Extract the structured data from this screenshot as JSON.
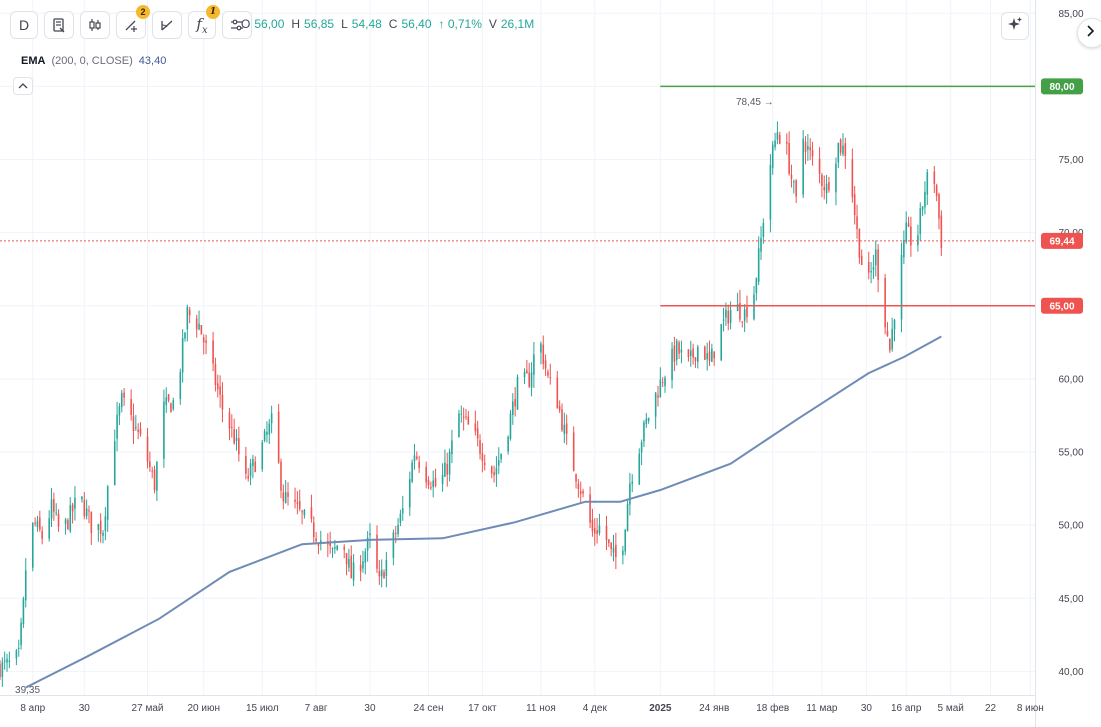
{
  "toolbar": {
    "interval_label": "D",
    "drawings_badge": "2",
    "indicators_badge": "1",
    "fx_label": "f",
    "fx_sub": "x"
  },
  "ohlc": {
    "o_key": "O",
    "o_val": "56,00",
    "h_key": "H",
    "h_val": "56,85",
    "l_key": "L",
    "l_val": "54,48",
    "c_key": "C",
    "c_val": "56,40",
    "change": "↑ 0,71%",
    "v_key": "V",
    "v_val": "26,1M"
  },
  "indicator": {
    "name": "EMA",
    "params": "(200, 0, CLOSE)",
    "value": "43,40"
  },
  "colors": {
    "up": "#26a69a",
    "down": "#ef5350",
    "ema": "#6f8bb6",
    "resistance": "#43a047",
    "support": "#ef5350",
    "current": "#ef5350"
  },
  "chart_data": {
    "type": "candlestick",
    "y_axis": {
      "min": 39,
      "max": 85.5,
      "ticks": [
        40,
        45,
        50,
        55,
        60,
        65,
        70,
        75,
        80,
        85
      ],
      "tick_labels": [
        "40,00",
        "45,00",
        "50,00",
        "55,00",
        "60,00",
        "65,00",
        "70,00",
        "75,00",
        "80,00",
        "85,00"
      ]
    },
    "x_axis": {
      "start": "2024-03-25",
      "end": "2025-06-10",
      "ticks": [
        {
          "date": "2024-04-08",
          "label": "8 апр",
          "bold": false
        },
        {
          "date": "2024-04-30",
          "label": "30",
          "bold": false
        },
        {
          "date": "2024-05-27",
          "label": "27 май",
          "bold": false
        },
        {
          "date": "2024-06-20",
          "label": "20 июн",
          "bold": false
        },
        {
          "date": "2024-07-15",
          "label": "15 июл",
          "bold": false
        },
        {
          "date": "2024-08-07",
          "label": "7 авг",
          "bold": false
        },
        {
          "date": "2024-08-30",
          "label": "30",
          "bold": false
        },
        {
          "date": "2024-09-24",
          "label": "24 сен",
          "bold": false
        },
        {
          "date": "2024-10-17",
          "label": "17 окт",
          "bold": false
        },
        {
          "date": "2024-11-11",
          "label": "11 ноя",
          "bold": false
        },
        {
          "date": "2024-12-04",
          "label": "4 дек",
          "bold": false
        },
        {
          "date": "2025-01-01",
          "label": "2025",
          "bold": true
        },
        {
          "date": "2025-01-24",
          "label": "24 янв",
          "bold": false
        },
        {
          "date": "2025-02-18",
          "label": "18 фев",
          "bold": false
        },
        {
          "date": "2025-03-11",
          "label": "11 мар",
          "bold": false
        },
        {
          "date": "2025-03-30",
          "label": "30",
          "bold": false
        },
        {
          "date": "2025-04-16",
          "label": "16 апр",
          "bold": false
        },
        {
          "date": "2025-05-05",
          "label": "5 май",
          "bold": false
        },
        {
          "date": "2025-05-22",
          "label": "22",
          "bold": false
        },
        {
          "date": "2025-06-08",
          "label": "8 июн",
          "bold": false
        }
      ]
    },
    "close_path": [
      [
        "2024-03-25",
        40.3
      ],
      [
        "2024-03-30",
        40.5
      ],
      [
        "2024-04-02",
        41.0
      ],
      [
        "2024-04-04",
        44.5
      ],
      [
        "2024-04-06",
        49.5
      ],
      [
        "2024-04-09",
        50.0
      ],
      [
        "2024-04-12",
        49.2
      ],
      [
        "2024-04-16",
        51.2
      ],
      [
        "2024-04-20",
        49.3
      ],
      [
        "2024-04-25",
        51.0
      ],
      [
        "2024-04-28",
        52.0
      ],
      [
        "2024-05-03",
        50.0
      ],
      [
        "2024-05-08",
        49.8
      ],
      [
        "2024-05-12",
        55.5
      ],
      [
        "2024-05-16",
        58.5
      ],
      [
        "2024-05-20",
        57.2
      ],
      [
        "2024-05-25",
        55.5
      ],
      [
        "2024-05-30",
        52.8
      ],
      [
        "2024-06-03",
        58.0
      ],
      [
        "2024-06-08",
        58.5
      ],
      [
        "2024-06-13",
        64.5
      ],
      [
        "2024-06-18",
        63.7
      ],
      [
        "2024-06-23",
        61.0
      ],
      [
        "2024-06-28",
        58.0
      ],
      [
        "2024-07-03",
        56.0
      ],
      [
        "2024-07-08",
        53.0
      ],
      [
        "2024-07-14",
        55.0
      ],
      [
        "2024-07-19",
        57.0
      ],
      [
        "2024-07-24",
        52.0
      ],
      [
        "2024-07-30",
        51.0
      ],
      [
        "2024-08-04",
        50.0
      ],
      [
        "2024-08-09",
        49.0
      ],
      [
        "2024-08-14",
        48.0
      ],
      [
        "2024-08-18",
        49.2
      ],
      [
        "2024-08-22",
        46.5
      ],
      [
        "2024-08-26",
        47.5
      ],
      [
        "2024-08-30",
        49.0
      ],
      [
        "2024-09-03",
        46.0
      ],
      [
        "2024-09-08",
        48.5
      ],
      [
        "2024-09-13",
        51.0
      ],
      [
        "2024-09-18",
        55.0
      ],
      [
        "2024-09-23",
        53.5
      ],
      [
        "2024-09-28",
        52.5
      ],
      [
        "2024-10-02",
        54.0
      ],
      [
        "2024-10-07",
        57.5
      ],
      [
        "2024-10-12",
        56.5
      ],
      [
        "2024-10-17",
        55.0
      ],
      [
        "2024-10-22",
        53.5
      ],
      [
        "2024-10-27",
        56.0
      ],
      [
        "2024-11-01",
        59.5
      ],
      [
        "2024-11-06",
        60.0
      ],
      [
        "2024-11-10",
        63.0
      ],
      [
        "2024-11-14",
        60.0
      ],
      [
        "2024-11-18",
        58.5
      ],
      [
        "2024-11-23",
        55.0
      ],
      [
        "2024-11-28",
        52.5
      ],
      [
        "2024-12-03",
        49.5
      ],
      [
        "2024-12-07",
        50.0
      ],
      [
        "2024-12-11",
        48.0
      ],
      [
        "2024-12-15",
        47.5
      ],
      [
        "2024-12-19",
        53.0
      ],
      [
        "2024-12-24",
        56.0
      ],
      [
        "2024-12-29",
        58.5
      ],
      [
        "2025-01-03",
        60.5
      ],
      [
        "2025-01-08",
        62.0
      ],
      [
        "2025-01-13",
        61.0
      ],
      [
        "2025-01-18",
        62.5
      ],
      [
        "2025-01-22",
        61.0
      ],
      [
        "2025-01-27",
        63.5
      ],
      [
        "2025-02-01",
        65.0
      ],
      [
        "2025-02-06",
        64.5
      ],
      [
        "2025-02-10",
        66.0
      ],
      [
        "2025-02-13",
        69.5
      ],
      [
        "2025-02-16",
        74.0
      ],
      [
        "2025-02-20",
        77.0
      ],
      [
        "2025-02-24",
        75.5
      ],
      [
        "2025-02-28",
        72.0
      ],
      [
        "2025-03-03",
        76.5
      ],
      [
        "2025-03-08",
        74.5
      ],
      [
        "2025-03-13",
        73.0
      ],
      [
        "2025-03-18",
        76.0
      ],
      [
        "2025-03-22",
        75.5
      ],
      [
        "2025-03-26",
        70.0
      ],
      [
        "2025-03-30",
        66.0
      ],
      [
        "2025-04-03",
        68.5
      ],
      [
        "2025-04-06",
        65.0
      ],
      [
        "2025-04-09",
        62.0
      ],
      [
        "2025-04-12",
        66.0
      ],
      [
        "2025-04-16",
        70.0
      ],
      [
        "2025-04-20",
        69.0
      ],
      [
        "2025-04-24",
        73.0
      ],
      [
        "2025-04-27",
        74.8
      ],
      [
        "2025-04-29",
        72.5
      ],
      [
        "2025-05-01",
        69.44
      ]
    ],
    "ema_line": {
      "name": "EMA",
      "points": [
        [
          "2024-04-05",
          38.9
        ],
        [
          "2024-05-01",
          41.0
        ],
        [
          "2024-06-01",
          43.6
        ],
        [
          "2024-07-01",
          46.8
        ],
        [
          "2024-08-01",
          48.7
        ],
        [
          "2024-08-31",
          49.0
        ],
        [
          "2024-09-30",
          49.1
        ],
        [
          "2024-10-31",
          50.2
        ],
        [
          "2024-11-30",
          51.6
        ],
        [
          "2024-12-15",
          51.6
        ],
        [
          "2025-01-01",
          52.4
        ],
        [
          "2025-01-31",
          54.2
        ],
        [
          "2025-03-01",
          57.3
        ],
        [
          "2025-03-31",
          60.4
        ],
        [
          "2025-04-15",
          61.5
        ],
        [
          "2025-05-01",
          62.9
        ]
      ]
    },
    "horizontal_lines": [
      {
        "name": "resistance",
        "price": 80.0,
        "label": "80,00",
        "from": "2025-01-01",
        "color": "#43a047"
      },
      {
        "name": "support",
        "price": 65.0,
        "label": "65,00",
        "from": "2025-01-01",
        "color": "#ef5350"
      }
    ],
    "current_price": {
      "value": 69.44,
      "label": "69,44"
    },
    "annotations": [
      {
        "name": "high",
        "date": "2025-02-21",
        "price": 78.45,
        "label": "78,45 →"
      },
      {
        "name": "low",
        "date": "2024-03-28",
        "price": 39.35,
        "label": "39,35"
      }
    ],
    "grid": true
  }
}
